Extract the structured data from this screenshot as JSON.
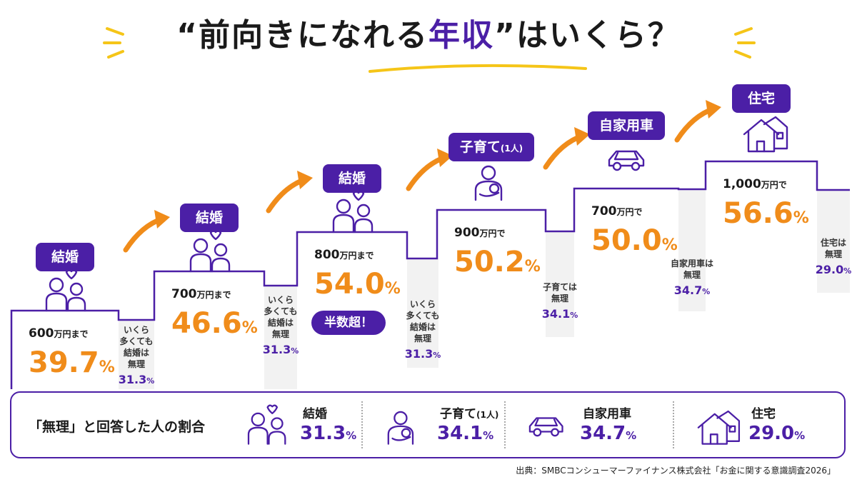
{
  "title": {
    "open_quote": "“",
    "text_before": "前向きになれる",
    "highlight": "年収",
    "close_quote": "”",
    "text_after": "はいくら？"
  },
  "colors": {
    "accent_purple": "#4b1fa6",
    "accent_orange": "#f08c1a",
    "gray_column": "#f2f2f2"
  },
  "chart_data": {
    "type": "bar",
    "categories": [
      "結婚",
      "結婚",
      "結婚",
      "子育て（1人）",
      "自家用車",
      "住宅"
    ],
    "steps": [
      {
        "badge": "結婚",
        "amount": "600",
        "amount_unit": "万円まで",
        "pct": "39.7",
        "pct_unit": "%",
        "icon": "couple-icon"
      },
      {
        "badge": "結婚",
        "amount": "700",
        "amount_unit": "万円まで",
        "pct": "46.6",
        "pct_unit": "%",
        "icon": "couple-icon"
      },
      {
        "badge": "結婚",
        "amount": "800",
        "amount_unit": "万円まで",
        "pct": "54.0",
        "pct_unit": "%",
        "icon": "couple-icon",
        "note": "半数超！"
      },
      {
        "badge": "子育て",
        "badge_small": "(1人)",
        "amount": "900",
        "amount_unit": "万円で",
        "pct": "50.2",
        "pct_unit": "%",
        "icon": "parent-baby-icon"
      },
      {
        "badge": "自家用車",
        "amount": "700",
        "amount_unit": "万円で",
        "pct": "50.0",
        "pct_unit": "%",
        "icon": "car-icon"
      },
      {
        "badge": "住宅",
        "amount": "1,000",
        "amount_unit": "万円で",
        "pct": "56.6",
        "pct_unit": "%",
        "icon": "house-icon"
      }
    ],
    "impossible": [
      {
        "lines": [
          "いくら",
          "多くても",
          "結婚は",
          "無理"
        ],
        "pct": "31.3",
        "pct_unit": "%"
      },
      {
        "lines": [
          "いくら",
          "多くても",
          "結婚は",
          "無理"
        ],
        "pct": "31.3",
        "pct_unit": "%"
      },
      {
        "lines": [
          "いくら",
          "多くても",
          "結婚は",
          "無理"
        ],
        "pct": "31.3",
        "pct_unit": "%"
      },
      {
        "lines": [
          "子育ては",
          "無理"
        ],
        "pct": "34.1",
        "pct_unit": "%"
      },
      {
        "lines": [
          "自家用車は",
          "無理"
        ],
        "pct": "34.7",
        "pct_unit": "%"
      },
      {
        "lines": [
          "住宅は",
          "無理"
        ],
        "pct": "29.0",
        "pct_unit": "%"
      }
    ],
    "values": [
      39.7,
      46.6,
      54.0,
      50.2,
      50.0,
      56.6
    ],
    "impossible_values": [
      31.3,
      31.3,
      31.3,
      34.1,
      34.7,
      29.0
    ]
  },
  "summary": {
    "label": "「無理」と回答した人の割合",
    "items": [
      {
        "name": "結婚",
        "name_small": "",
        "pct": "31.3",
        "unit": "%",
        "icon": "couple-icon"
      },
      {
        "name": "子育て",
        "name_small": "(1人)",
        "pct": "34.1",
        "unit": "%",
        "icon": "parent-baby-icon"
      },
      {
        "name": "自家用車",
        "name_small": "",
        "pct": "34.7",
        "unit": "%",
        "icon": "car-icon"
      },
      {
        "name": "住宅",
        "name_small": "",
        "pct": "29.0",
        "unit": "%",
        "icon": "house-icon"
      }
    ]
  },
  "source": "出典：SMBCコンシューマーファイナンス株式会社「お金に関する意識調査2026」"
}
